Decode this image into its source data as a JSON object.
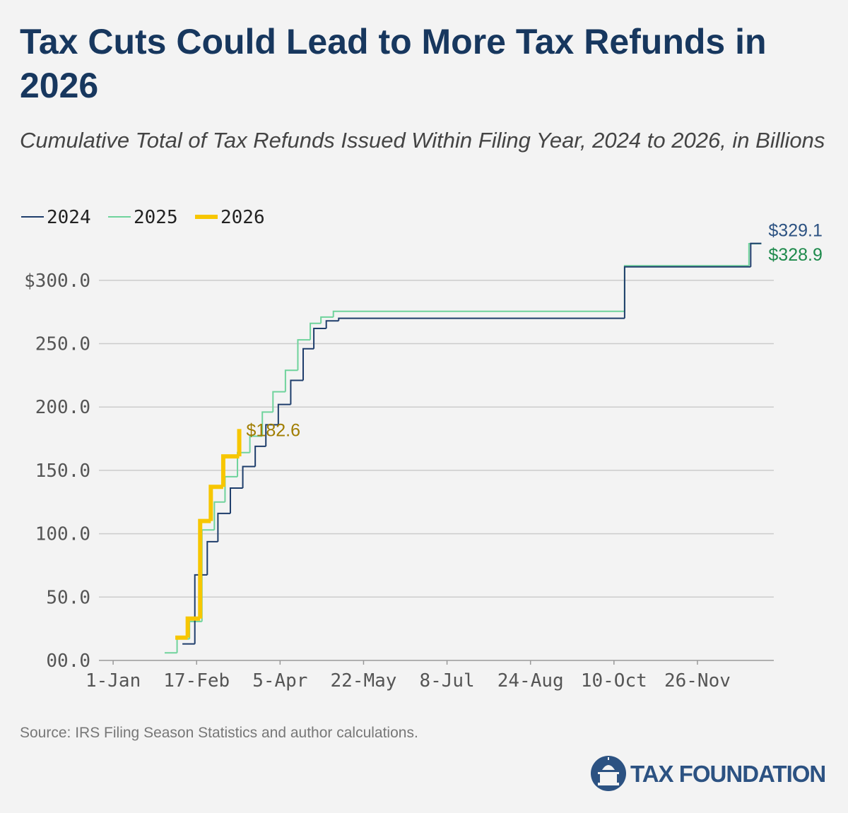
{
  "chart_data": {
    "type": "line",
    "step": true,
    "title": "Tax Cuts Could Lead to More Tax Refunds in 2026",
    "subtitle": "Cumulative Total of Tax Refunds Issued Within Filing Year, 2024 to 2026, in Billions",
    "source": "Source: IRS Filing Season Statistics and author calculations.",
    "brand": "TAX FOUNDATION",
    "series": [
      {
        "name": "2024",
        "color": "#1e3d6b",
        "width": 2,
        "x": [
          39,
          46,
          53,
          59,
          66,
          73,
          80,
          86,
          93,
          100,
          107,
          113,
          120,
          127,
          288,
          359,
          365
        ],
        "values": [
          13,
          67.5,
          93.7,
          116,
          136,
          153,
          169,
          186,
          202,
          221,
          246,
          262,
          268,
          270,
          310.6,
          329.1,
          329.1
        ]
      },
      {
        "name": "2025",
        "color": "#6fd39c",
        "width": 2,
        "x": [
          29,
          36,
          43,
          50,
          57,
          63,
          70,
          77,
          84,
          90,
          97,
          104,
          111,
          117,
          124,
          288,
          358,
          365
        ],
        "values": [
          6,
          17,
          30.7,
          103,
          125,
          145,
          164,
          177,
          196,
          212,
          229,
          253,
          266,
          271,
          275.5,
          311.5,
          328.9,
          328.9
        ]
      },
      {
        "name": "2026",
        "color": "#f7c600",
        "width": 6,
        "x": [
          35,
          42,
          49,
          55,
          62,
          71
        ],
        "values": [
          18,
          33,
          110,
          137,
          161,
          182.6
        ]
      }
    ],
    "annotations": [
      {
        "text": "$329.1",
        "color": "#2c5282",
        "series": 0
      },
      {
        "text": "$328.9",
        "color": "#1e8a4c",
        "series": 1
      },
      {
        "text": "$182.6",
        "color": "#a07d00",
        "series": 2
      }
    ],
    "xlim": [
      -8,
      372
    ],
    "xticks": [
      {
        "value": 0,
        "label": "1-Jan"
      },
      {
        "value": 47,
        "label": "17-Feb"
      },
      {
        "value": 94,
        "label": "5-Apr"
      },
      {
        "value": 141,
        "label": "22-May"
      },
      {
        "value": 188,
        "label": "8-Jul"
      },
      {
        "value": 235,
        "label": "24-Aug"
      },
      {
        "value": 282,
        "label": "10-Oct"
      },
      {
        "value": 329,
        "label": "26-Nov"
      }
    ],
    "ylim": [
      0,
      330
    ],
    "yticks": [
      {
        "value": 0,
        "label": "00.0"
      },
      {
        "value": 50,
        "label": "50.0"
      },
      {
        "value": 100,
        "label": "100.0"
      },
      {
        "value": 150,
        "label": "150.0"
      },
      {
        "value": 200,
        "label": "200.0"
      },
      {
        "value": 250,
        "label": "250.0"
      },
      {
        "value": 300,
        "label": "$300.0"
      }
    ],
    "grid": true,
    "legend": "top-left"
  }
}
